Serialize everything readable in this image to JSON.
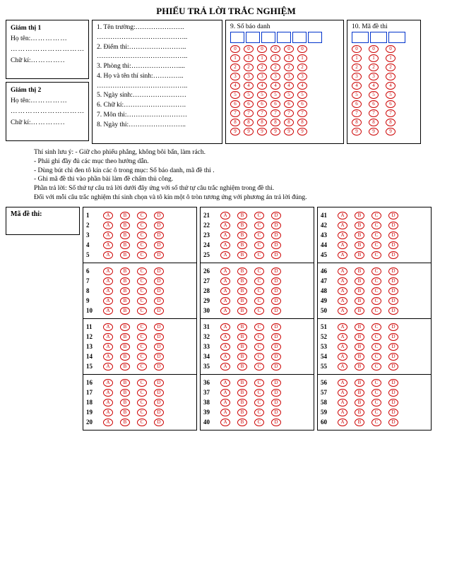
{
  "title": "PHIẾU TRẢ LỜI TRẮC NGHIỆM",
  "giamThi": [
    {
      "heading": "Giám thị 1",
      "hoTenLabel": "Họ tên:",
      "line2": "",
      "chuKiLabel": "Chữ kí:"
    },
    {
      "heading": "Giám thị 2",
      "hoTenLabel": "Họ tên:",
      "line2": "",
      "chuKiLabel": "Chữ kí:"
    }
  ],
  "infoLines": [
    "1. Tên trường:………………….",
    "…………………………………..",
    "2. Điểm thi:……………………..",
    "…………………………………..",
    "3. Phòng thi:…………………....",
    "4. Họ và tên thí sinh:…………..",
    "…………………………………..",
    "5. Ngày sinh:……………………",
    "6. Chữ kí:……………………….",
    "7. Môn thi:………………………",
    "8. Ngày thi:…………………….."
  ],
  "sbdLabel": "9. Số báo danh",
  "maDeLabel": "10. Mã đề thi",
  "digits": [
    "0",
    "1",
    "2",
    "3",
    "4",
    "5",
    "6",
    "7",
    "8",
    "9"
  ],
  "sbdCols": 6,
  "maDeCols": 3,
  "notes": [
    "Thí sinh lưu ý: - Giữ cho phiếu phẳng, không bôi bẩn, làm rách.",
    "- Phải ghi đầy đủ các mục theo hướng dẫn.",
    "- Dùng bút chì đen tô kín các ô trong mục: Số báo danh, mã đề thi .",
    "- Ghi mã đề thi vào phần bài làm đề chấm thủ công.",
    "  Phần trả lời: Số thứ tự câu trả lời dưới đây ứng với số thứ tự câu trắc nghiệm trong đề thi.",
    "Đối với mỗi câu trắc nghiệm thí sinh chọn và tô kín một ô tròn tương ứng với phương án trả lời đúng."
  ],
  "maDeInput": "Mã đề thi:",
  "options": [
    "A",
    "B",
    "C",
    "D"
  ],
  "answerColumns": [
    [
      [
        1,
        2,
        3,
        4,
        5
      ],
      [
        6,
        7,
        8,
        9,
        10
      ],
      [
        11,
        12,
        13,
        14,
        15
      ],
      [
        16,
        17,
        18,
        19,
        20
      ]
    ],
    [
      [
        21,
        22,
        23,
        24,
        25
      ],
      [
        26,
        27,
        28,
        29,
        30
      ],
      [
        31,
        32,
        33,
        34,
        35
      ],
      [
        36,
        37,
        38,
        39,
        40
      ]
    ],
    [
      [
        41,
        42,
        43,
        44,
        45
      ],
      [
        46,
        47,
        48,
        49,
        50
      ],
      [
        51,
        52,
        53,
        54,
        55
      ],
      [
        56,
        57,
        58,
        59,
        60
      ]
    ]
  ],
  "colors": {
    "bubbleBorder": "#c00",
    "cellBorder": "#0033cc"
  }
}
